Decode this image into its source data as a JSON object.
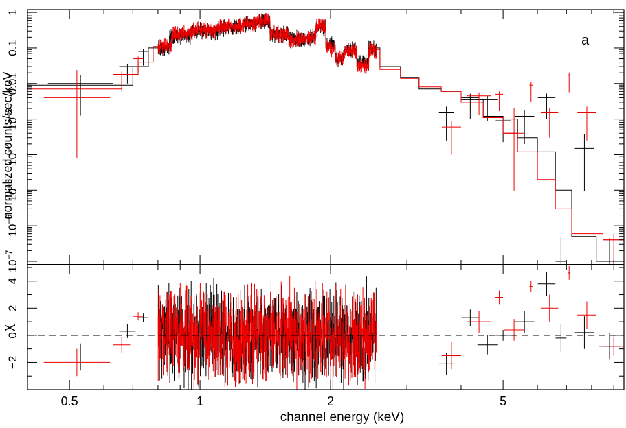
{
  "chart_data": {
    "type": "scatter",
    "panel_label": "a",
    "xlabel": "channel energy (keV)",
    "xscale": "log",
    "xlim": [
      0.4,
      9.5
    ],
    "x_ticks": [
      0.5,
      1,
      2,
      5
    ],
    "x_tick_labels": [
      "0.5",
      "1",
      "2",
      "5"
    ],
    "top_panel": {
      "ylabel": "normalized counts/sec/keV",
      "yscale": "log",
      "ylim": [
        8e-08,
        1.2
      ],
      "y_tick_labels": [
        {
          "value": 1,
          "mant": "1",
          "exp": ""
        },
        {
          "value": 0.1,
          "mant": "0.1",
          "exp": ""
        },
        {
          "value": 0.01,
          "mant": "0.01",
          "exp": ""
        },
        {
          "value": 0.001,
          "mant": "10",
          "exp": "−3"
        },
        {
          "value": 0.0001,
          "mant": "10",
          "exp": "−4"
        },
        {
          "value": 1e-05,
          "mant": "10",
          "exp": "−5"
        },
        {
          "value": 1e-06,
          "mant": "10",
          "exp": "−6"
        },
        {
          "value": 1e-07,
          "mant": "10",
          "exp": "−7"
        }
      ]
    },
    "bottom_panel": {
      "ylabel": "χ",
      "ylim": [
        -4,
        5.2
      ],
      "y_ticks": [
        -2,
        0,
        2,
        4
      ],
      "y_tick_labels": [
        "−2",
        "0",
        "2",
        "4"
      ],
      "reference_line": 0
    },
    "series": [
      {
        "name": "black",
        "color": "#000000",
        "model_steps": [
          [
            0.4,
            0.009
          ],
          [
            0.63,
            0.009
          ],
          [
            0.7,
            0.03
          ],
          [
            0.76,
            0.1
          ],
          [
            0.85,
            0.22
          ],
          [
            0.95,
            0.3
          ],
          [
            1.1,
            0.38
          ],
          [
            1.25,
            0.45
          ],
          [
            1.35,
            0.55
          ],
          [
            1.45,
            0.25
          ],
          [
            1.6,
            0.18
          ],
          [
            1.75,
            0.2
          ],
          [
            1.85,
            0.38
          ],
          [
            1.95,
            0.12
          ],
          [
            2.05,
            0.05
          ],
          [
            2.15,
            0.09
          ],
          [
            2.3,
            0.04
          ],
          [
            2.45,
            0.1
          ],
          [
            2.6,
            0.03
          ],
          [
            2.9,
            0.015
          ],
          [
            3.2,
            0.007
          ],
          [
            3.6,
            0.006
          ],
          [
            4.0,
            0.0035
          ],
          [
            4.5,
            0.0012
          ],
          [
            5.0,
            0.001
          ],
          [
            5.4,
            0.0003
          ],
          [
            6.0,
            0.00012
          ],
          [
            6.6,
            1e-05
          ],
          [
            7.2,
            5e-07
          ],
          [
            8.2,
            1e-07
          ],
          [
            9.5,
            1e-07
          ]
        ],
        "points": [
          {
            "x": 0.53,
            "y": 0.01,
            "xe": 0.1,
            "ye": 0.7,
            "chi": -1.6,
            "chie": 1.0
          },
          {
            "x": 0.68,
            "y": 0.03,
            "xe": 0.03,
            "ye": 0.2,
            "chi": 0.3,
            "chie": 0.5
          },
          {
            "x": 0.74,
            "y": 0.08,
            "xe": 0.02,
            "ye": 0.15,
            "chi": 1.3,
            "chie": 0.3
          },
          {
            "x": 3.7,
            "y": 0.0015,
            "xe": 0.15,
            "ye": 0.5,
            "chi": -2.1,
            "chie": 0.8
          },
          {
            "x": 4.2,
            "y": 0.004,
            "xe": 0.2,
            "ye": 0.3,
            "chi": 1.3,
            "chie": 0.6
          },
          {
            "x": 4.6,
            "y": 0.0035,
            "xe": 0.25,
            "ye": 0.3,
            "chi": -0.7,
            "chie": 0.7
          },
          {
            "x": 5.0,
            "y": 0.0009,
            "xe": 0.2,
            "ye": 0.3,
            "chi": 0.0,
            "chie": 0.4
          },
          {
            "x": 5.6,
            "y": 0.0012,
            "xe": 0.3,
            "ye": 0.5,
            "chi": 1.0,
            "chie": 0.8
          },
          {
            "x": 6.3,
            "y": 0.004,
            "xe": 0.3,
            "ye": 0.3,
            "chi": 3.8,
            "chie": 0.9
          },
          {
            "x": 6.8,
            "y": 1e-07,
            "xe": 0.2,
            "ye": 4.0,
            "chi": -0.2,
            "chie": 1.0
          },
          {
            "x": 7.7,
            "y": 0.00015,
            "xe": 0.4,
            "ye": 1.5,
            "chi": 0.2,
            "chie": 1.2
          },
          {
            "x": 8.8,
            "y": 1e-07,
            "xe": 0.5,
            "ye": 3.5,
            "chi": -0.8,
            "chie": 1.0
          }
        ]
      },
      {
        "name": "red",
        "color": "#ee0000",
        "model_steps": [
          [
            0.4,
            0.007
          ],
          [
            0.6,
            0.007
          ],
          [
            0.66,
            0.018
          ],
          [
            0.72,
            0.04
          ],
          [
            0.78,
            0.11
          ],
          [
            0.86,
            0.25
          ],
          [
            0.96,
            0.32
          ],
          [
            1.1,
            0.4
          ],
          [
            1.25,
            0.48
          ],
          [
            1.35,
            0.6
          ],
          [
            1.45,
            0.25
          ],
          [
            1.6,
            0.17
          ],
          [
            1.75,
            0.2
          ],
          [
            1.85,
            0.42
          ],
          [
            1.95,
            0.1
          ],
          [
            2.05,
            0.05
          ],
          [
            2.15,
            0.08
          ],
          [
            2.3,
            0.03
          ],
          [
            2.45,
            0.09
          ],
          [
            2.6,
            0.025
          ],
          [
            2.9,
            0.014
          ],
          [
            3.2,
            0.008
          ],
          [
            3.6,
            0.006
          ],
          [
            4.0,
            0.003
          ],
          [
            4.5,
            0.0011
          ],
          [
            5.0,
            0.0004
          ],
          [
            5.4,
            0.00012
          ],
          [
            6.0,
            2e-05
          ],
          [
            6.6,
            3e-06
          ],
          [
            7.2,
            6e-07
          ],
          [
            8.5,
            4e-07
          ],
          [
            9.5,
            4e-07
          ]
        ],
        "points": [
          {
            "x": 0.52,
            "y": 0.004,
            "xe": 0.1,
            "ye": 5.0,
            "chi": -2.0,
            "chie": 1.0
          },
          {
            "x": 0.66,
            "y": 0.018,
            "xe": 0.03,
            "ye": 0.2,
            "chi": -0.7,
            "chie": 0.6
          },
          {
            "x": 0.72,
            "y": 0.05,
            "xe": 0.02,
            "ye": 0.15,
            "chi": 1.4,
            "chie": 0.3
          },
          {
            "x": 3.8,
            "y": 0.0006,
            "xe": 0.2,
            "ye": 0.5,
            "chi": -1.5,
            "chie": 1.0
          },
          {
            "x": 4.4,
            "y": 0.0045,
            "xe": 0.3,
            "ye": 0.25,
            "chi": 1.0,
            "chie": 0.8
          },
          {
            "x": 4.9,
            "y": 0.005,
            "xe": 0.1,
            "ye": 0.2,
            "chi": 2.8,
            "chie": 0.5
          },
          {
            "x": 5.3,
            "y": 0.0004,
            "xe": 0.3,
            "ye": 4.0,
            "chi": 0.4,
            "chie": 0.8
          },
          {
            "x": 5.8,
            "y": 0.009,
            "xe": 0.05,
            "ye": 0.2,
            "chi": 3.6,
            "chie": 0.4
          },
          {
            "x": 6.4,
            "y": 0.0015,
            "xe": 0.3,
            "ye": 0.4,
            "chi": 2.0,
            "chie": 1.0
          },
          {
            "x": 7.1,
            "y": 0.017,
            "xe": 0.05,
            "ye": 0.2,
            "chi": 4.6,
            "chie": 0.5
          },
          {
            "x": 7.8,
            "y": 0.0015,
            "xe": 0.4,
            "ye": 0.5,
            "chi": 1.5,
            "chie": 1.0
          },
          {
            "x": 9.0,
            "y": 4e-07,
            "xe": 0.5,
            "ye": 0.5,
            "chi": -0.8,
            "chie": 0.7
          }
        ]
      }
    ]
  }
}
